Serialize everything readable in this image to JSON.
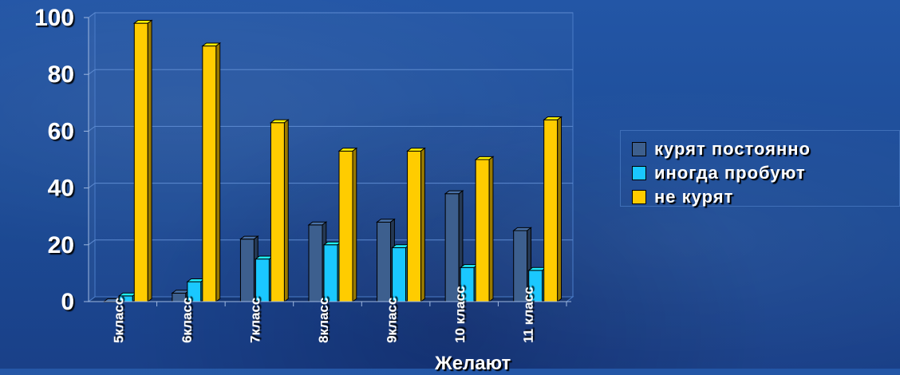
{
  "chart_data": {
    "type": "bar",
    "categories": [
      "5класс",
      "6класс",
      "7класс",
      "8класс",
      "9класс",
      "10 класс",
      "11 класс"
    ],
    "series": [
      {
        "name": "курят постоянно",
        "values": [
          0,
          3,
          22,
          27,
          28,
          38,
          25
        ],
        "color": "#3d5f8e"
      },
      {
        "name": "иногда пробуют",
        "values": [
          2,
          7,
          15,
          20,
          19,
          12,
          11
        ],
        "color": "#1ac8ff"
      },
      {
        "name": "не курят",
        "values": [
          98,
          90,
          63,
          53,
          53,
          50,
          64
        ],
        "color": "#ffcc00"
      }
    ],
    "ylim": [
      0,
      100
    ],
    "y_ticks": [
      "0",
      "20",
      "40",
      "60",
      "80",
      "100"
    ],
    "grid": true,
    "legend": "right",
    "three_d": true
  },
  "footer_note": "Желают"
}
